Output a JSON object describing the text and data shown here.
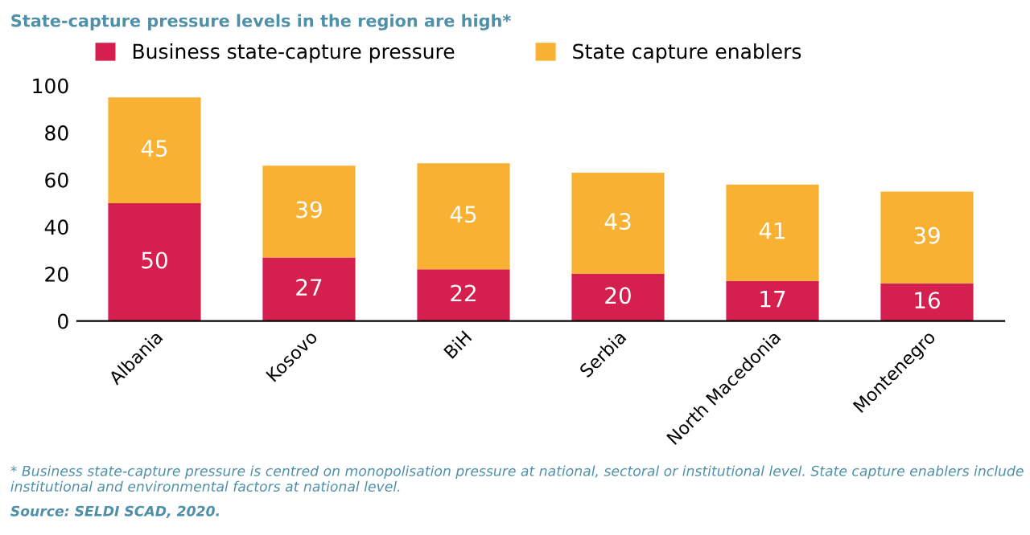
{
  "chart_data": {
    "type": "bar",
    "title": "State-capture pressure levels in the region are high*",
    "categories": [
      "Albania",
      "Kosovo",
      "BiH",
      "Serbia",
      "North Macedonia",
      "Montenegro"
    ],
    "stacked": true,
    "data_labels": true,
    "legend": "top",
    "grid": false,
    "ylim": [
      0,
      100
    ],
    "yticks": [
      0,
      20,
      40,
      60,
      80,
      100
    ],
    "series": [
      {
        "name": "Business state-capture pressure",
        "color": "#d5204f",
        "values": [
          50,
          27,
          22,
          20,
          17,
          16
        ]
      },
      {
        "name": "State capture enablers",
        "color": "#f8b133",
        "values": [
          45,
          39,
          45,
          43,
          41,
          39
        ]
      }
    ],
    "annotations": [
      "* Business state-capture pressure is centred on monopolisation pressure at national, sectoral or institutional level. State capture enablers include institutional and environmental factors at national level.",
      "Source: SELDI SCAD, 2020."
    ]
  }
}
